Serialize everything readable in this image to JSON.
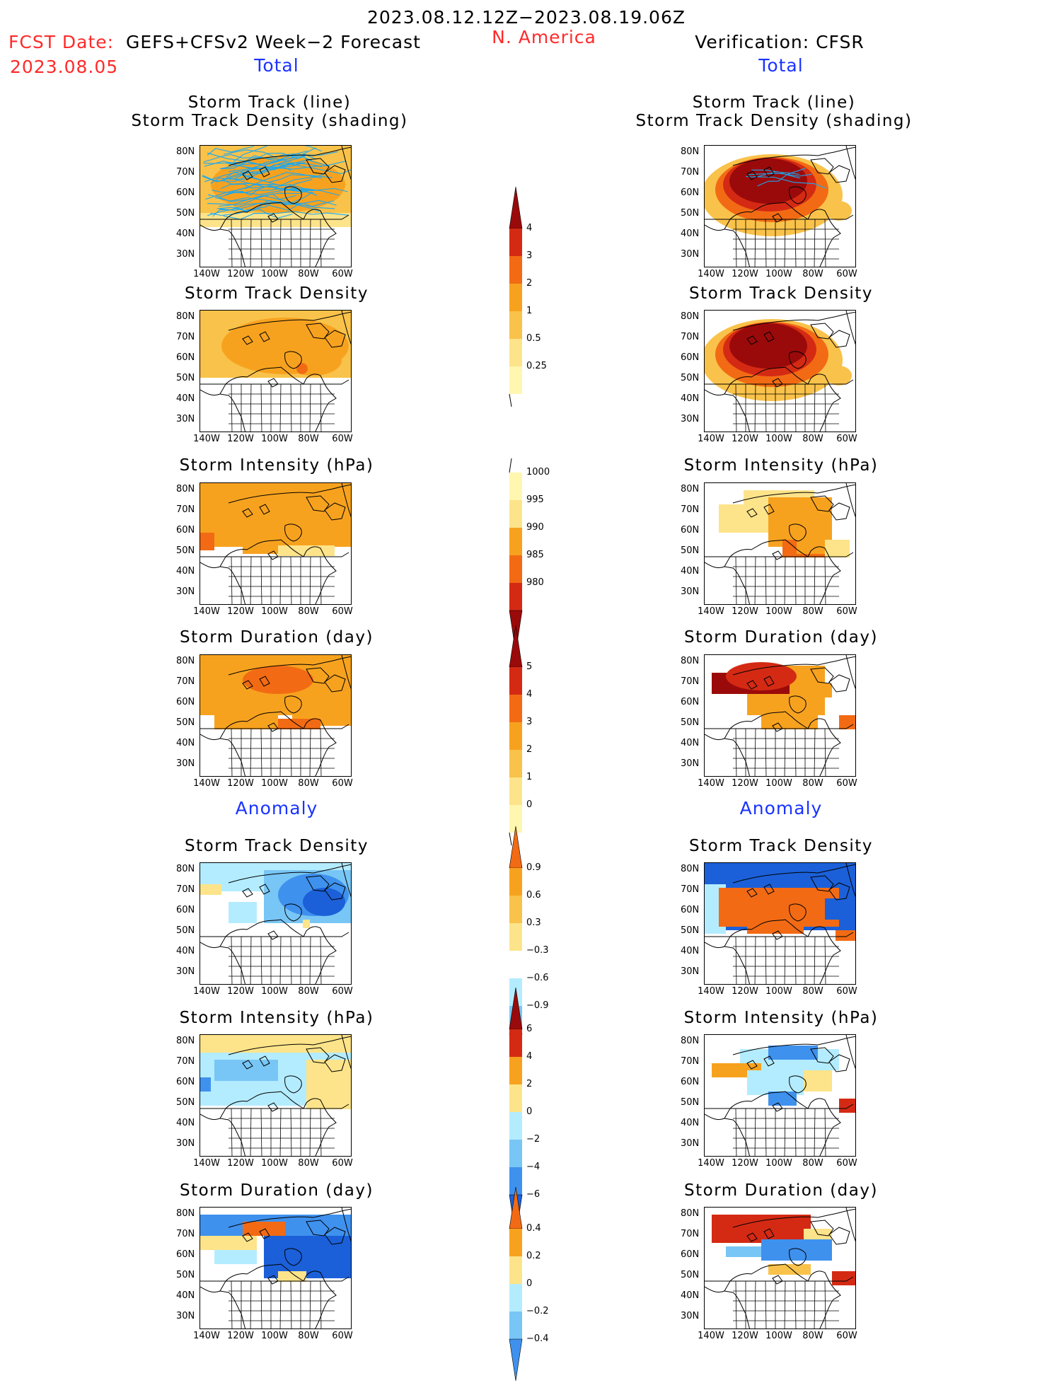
{
  "header": {
    "period": "2023.08.12.12Z−2023.08.19.06Z",
    "fcst_label": "FCST Date:",
    "fcst_desc": "GEFS+CFSv2 Week−2 Forecast",
    "fcst_date": "2023.08.05",
    "region": "N. America",
    "verification": "Verification: CFSR"
  },
  "sections": {
    "total": "Total",
    "anomaly": "Anomaly"
  },
  "axes": {
    "lat_ticks": [
      "80N",
      "70N",
      "60N",
      "50N",
      "40N",
      "30N"
    ],
    "lon_ticks": [
      "140W",
      "120W",
      "100W",
      "80W",
      "60W"
    ]
  },
  "colors": {
    "s1": "#fff6b0",
    "s2": "#fde48a",
    "s3": "#f9c24a",
    "s4": "#f7a21f",
    "s5": "#f26b14",
    "s6": "#d42a14",
    "s7": "#9b0a0a",
    "b1": "#b4ecff",
    "b2": "#78c6f5",
    "b3": "#3f91ee",
    "b4": "#1b60d8",
    "track": "#1aa8f0"
  },
  "chart_data": [
    {
      "id": "fc-tot-track",
      "type": "heatmap",
      "title": "Storm Track (line)\nStorm Track Density (shading)",
      "overlay": "storm track lines",
      "levels": [
        0.25,
        0.5,
        1,
        2,
        3,
        4
      ]
    },
    {
      "id": "ver-tot-track",
      "type": "heatmap",
      "title": "Storm Track (line)\nStorm Track Density (shading)",
      "overlay": "storm track lines",
      "levels": [
        0.25,
        0.5,
        1,
        2,
        3,
        4
      ]
    },
    {
      "id": "fc-tot-dens",
      "type": "heatmap",
      "title": "Storm Track Density",
      "levels": [
        0.25,
        0.5,
        1,
        2,
        3,
        4
      ]
    },
    {
      "id": "ver-tot-dens",
      "type": "heatmap",
      "title": "Storm Track Density",
      "levels": [
        0.25,
        0.5,
        1,
        2,
        3,
        4
      ]
    },
    {
      "id": "fc-tot-int",
      "type": "heatmap",
      "title": "Storm Intensity (hPa)",
      "levels": [
        1000,
        995,
        990,
        985,
        980
      ]
    },
    {
      "id": "ver-tot-int",
      "type": "heatmap",
      "title": "Storm Intensity (hPa)",
      "levels": [
        1000,
        995,
        990,
        985,
        980
      ]
    },
    {
      "id": "fc-tot-dur",
      "type": "heatmap",
      "title": "Storm Duration (day)",
      "levels": [
        0,
        1,
        2,
        3,
        4,
        5
      ]
    },
    {
      "id": "ver-tot-dur",
      "type": "heatmap",
      "title": "Storm Duration (day)",
      "levels": [
        0,
        1,
        2,
        3,
        4,
        5
      ]
    },
    {
      "id": "fc-an-dens",
      "type": "heatmap",
      "title": "Storm Track Density",
      "levels": [
        -0.9,
        -0.6,
        -0.3,
        0.3,
        0.6,
        0.9
      ]
    },
    {
      "id": "ver-an-dens",
      "type": "heatmap",
      "title": "Storm Track Density",
      "levels": [
        -0.9,
        -0.6,
        -0.3,
        0.3,
        0.6,
        0.9
      ]
    },
    {
      "id": "fc-an-int",
      "type": "heatmap",
      "title": "Storm Intensity (hPa)",
      "levels": [
        -6,
        -4,
        -2,
        0,
        2,
        4,
        6
      ]
    },
    {
      "id": "ver-an-int",
      "type": "heatmap",
      "title": "Storm Intensity (hPa)",
      "levels": [
        -6,
        -4,
        -2,
        0,
        2,
        4,
        6
      ]
    },
    {
      "id": "fc-an-dur",
      "type": "heatmap",
      "title": "Storm Duration (day)",
      "levels": [
        -0.4,
        -0.2,
        0,
        0.2,
        0.4
      ]
    },
    {
      "id": "ver-an-dur",
      "type": "heatmap",
      "title": "Storm Duration (day)",
      "levels": [
        -0.4,
        -0.2,
        0,
        0.2,
        0.4
      ]
    }
  ],
  "colorbars": [
    {
      "id": "cb-density",
      "labels": [
        "4",
        "3",
        "2",
        "1",
        "0.5",
        "0.25"
      ]
    },
    {
      "id": "cb-intensity",
      "labels": [
        "1000",
        "995",
        "990",
        "985",
        "980"
      ]
    },
    {
      "id": "cb-duration",
      "labels": [
        "5",
        "4",
        "3",
        "2",
        "1",
        "0"
      ]
    },
    {
      "id": "cb-an-density",
      "labels": [
        "0.9",
        "0.6",
        "0.3",
        "−0.3",
        "−0.6",
        "−0.9"
      ]
    },
    {
      "id": "cb-an-intensity",
      "labels": [
        "6",
        "4",
        "2",
        "0",
        "−2",
        "−4",
        "−6"
      ]
    },
    {
      "id": "cb-an-duration",
      "labels": [
        "0.4",
        "0.2",
        "0",
        "−0.2",
        "−0.4"
      ]
    }
  ]
}
